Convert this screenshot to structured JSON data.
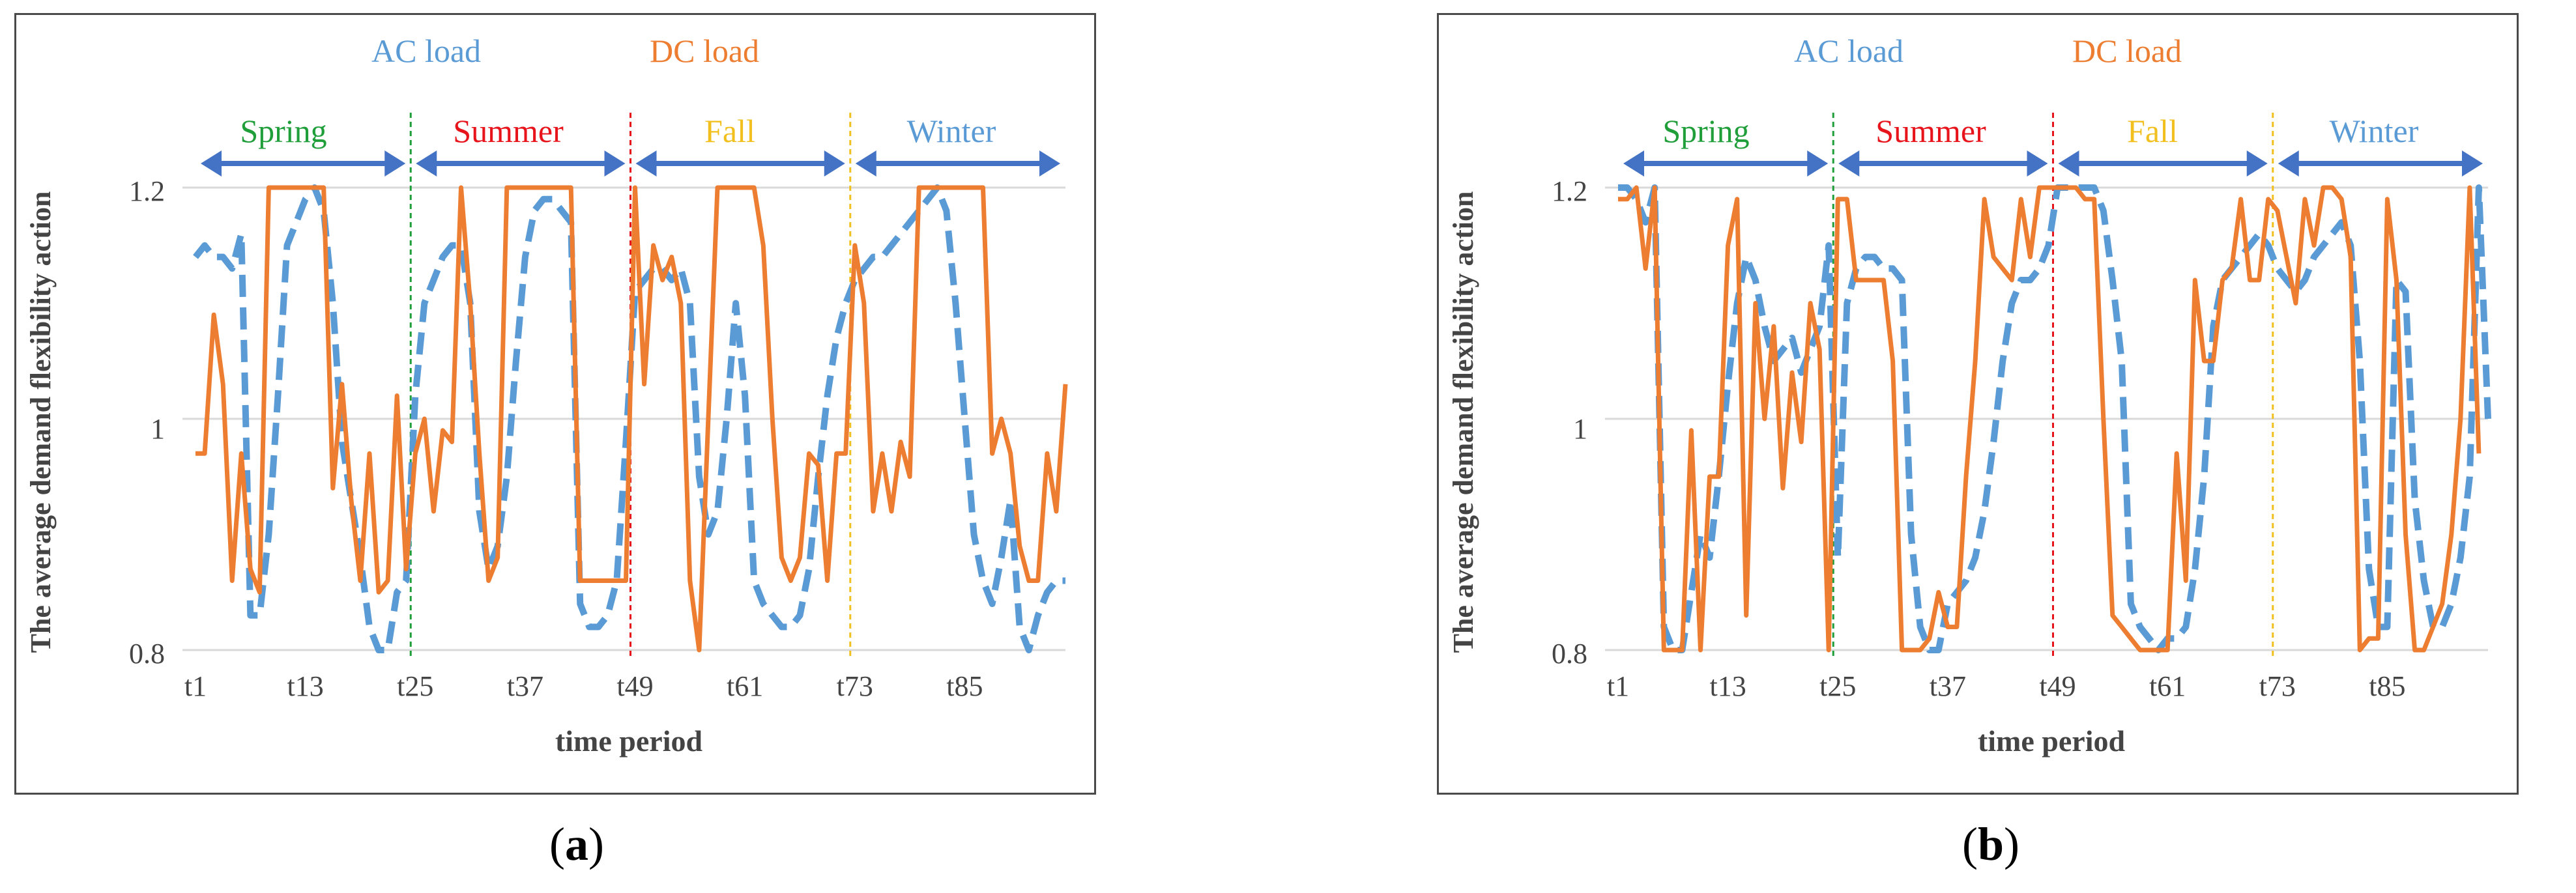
{
  "colors": {
    "ac": "#5b9bd5",
    "dc": "#ed7d31",
    "spring": "#1f9e3a",
    "summer": "#e8141c",
    "fall": "#f2c01e",
    "winter": "#5b9bd5",
    "arrow": "#4472c4",
    "grid": "#d9d9d9"
  },
  "panels": [
    {
      "id": "a",
      "label_open": "(",
      "label_letter": "a",
      "label_close": ")",
      "legend_ac": "AC load",
      "legend_dc": "DC load",
      "seasons": [
        "Spring",
        "Summer",
        "Fall",
        "Winter"
      ],
      "ylabel": "The average demand flexibility action",
      "xlabel": "time period",
      "yticks": [
        "0.8",
        "1",
        "1.2"
      ],
      "xticks": [
        "t1",
        "t13",
        "t25",
        "t37",
        "t49",
        "t61",
        "t73",
        "t85"
      ]
    },
    {
      "id": "b",
      "label_open": "(",
      "label_letter": "b",
      "label_close": ")",
      "legend_ac": "AC load",
      "legend_dc": "DC load",
      "seasons": [
        "Spring",
        "Summer",
        "Fall",
        "Winter"
      ],
      "ylabel": "The average demand flexibility action",
      "xlabel": "time period",
      "yticks": [
        "0.8",
        "1",
        "1.2"
      ],
      "xticks": [
        "t1",
        "t13",
        "t25",
        "t37",
        "t49",
        "t61",
        "t73",
        "t85"
      ]
    }
  ],
  "chart_data": [
    {
      "type": "line",
      "title": "",
      "xlabel": "time period",
      "ylabel": "The average demand flexibility action",
      "ylim": [
        0.8,
        1.2
      ],
      "xlim": [
        1,
        96
      ],
      "x_ticks": [
        "t1",
        "t13",
        "t25",
        "t37",
        "t49",
        "t61",
        "t73",
        "t85"
      ],
      "season_dividers": [
        24.5,
        48.5,
        72.5
      ],
      "series": [
        {
          "name": "AC load",
          "style": "dashed",
          "values": [
            1.14,
            1.15,
            1.14,
            1.14,
            1.13,
            1.16,
            0.83,
            0.83,
            0.9,
            1.02,
            1.15,
            1.17,
            1.19,
            1.2,
            1.18,
            1.1,
            0.98,
            0.93,
            0.88,
            0.82,
            0.8,
            0.8,
            0.85,
            0.86,
            1.02,
            1.1,
            1.12,
            1.14,
            1.15,
            1.15,
            1.1,
            0.92,
            0.87,
            0.89,
            0.95,
            1.05,
            1.14,
            1.18,
            1.19,
            1.19,
            1.18,
            1.17,
            0.84,
            0.82,
            0.82,
            0.83,
            0.86,
            0.98,
            1.11,
            1.12,
            1.13,
            1.13,
            1.12,
            1.13,
            1.1,
            0.95,
            0.9,
            0.92,
            1.0,
            1.1,
            1.02,
            0.86,
            0.84,
            0.83,
            0.82,
            0.82,
            0.83,
            0.87,
            0.95,
            1.02,
            1.07,
            1.1,
            1.12,
            1.13,
            1.14,
            1.14,
            1.15,
            1.16,
            1.17,
            1.18,
            1.19,
            1.2,
            1.18,
            1.1,
            1.0,
            0.9,
            0.86,
            0.84,
            0.88,
            0.93,
            0.82,
            0.8,
            0.83,
            0.85,
            0.86,
            0.86
          ]
        },
        {
          "name": "DC load",
          "style": "solid",
          "values": [
            0.97,
            0.97,
            1.09,
            1.03,
            0.86,
            0.97,
            0.87,
            0.85,
            1.2,
            1.2,
            1.2,
            1.2,
            1.2,
            1.2,
            1.2,
            0.94,
            1.03,
            0.93,
            0.86,
            0.97,
            0.85,
            0.86,
            1.02,
            0.87,
            0.97,
            1.0,
            0.92,
            0.99,
            0.98,
            1.2,
            1.1,
            0.97,
            0.86,
            0.88,
            1.2,
            1.2,
            1.2,
            1.2,
            1.2,
            1.2,
            1.2,
            1.2,
            0.86,
            0.86,
            0.86,
            0.86,
            0.86,
            0.86,
            1.2,
            1.03,
            1.15,
            1.12,
            1.14,
            1.1,
            0.86,
            0.8,
            1.0,
            1.2,
            1.2,
            1.2,
            1.2,
            1.2,
            1.15,
            1.0,
            0.88,
            0.86,
            0.88,
            0.97,
            0.96,
            0.86,
            0.97,
            0.97,
            1.15,
            1.1,
            0.92,
            0.97,
            0.92,
            0.98,
            0.95,
            1.2,
            1.2,
            1.2,
            1.2,
            1.2,
            1.2,
            1.2,
            1.2,
            0.97,
            1.0,
            0.97,
            0.89,
            0.86,
            0.86,
            0.97,
            0.92,
            1.03
          ]
        }
      ]
    },
    {
      "type": "line",
      "title": "",
      "xlabel": "time period",
      "ylabel": "The average demand flexibility action",
      "ylim": [
        0.8,
        1.2
      ],
      "xlim": [
        1,
        96
      ],
      "x_ticks": [
        "t1",
        "t13",
        "t25",
        "t37",
        "t49",
        "t61",
        "t73",
        "t85"
      ],
      "season_dividers": [
        24.5,
        48.5,
        72.5
      ],
      "series": [
        {
          "name": "AC load",
          "style": "dashed",
          "values": [
            1.2,
            1.2,
            1.19,
            1.17,
            1.2,
            0.82,
            0.8,
            0.8,
            0.85,
            0.9,
            0.88,
            0.95,
            1.03,
            1.1,
            1.14,
            1.12,
            1.08,
            1.05,
            1.06,
            1.07,
            1.04,
            1.06,
            1.08,
            1.15,
            0.88,
            1.1,
            1.13,
            1.14,
            1.14,
            1.13,
            1.13,
            1.12,
            0.9,
            0.82,
            0.8,
            0.8,
            0.84,
            0.85,
            0.86,
            0.88,
            0.92,
            0.98,
            1.05,
            1.1,
            1.12,
            1.12,
            1.13,
            1.15,
            1.2,
            1.2,
            1.2,
            1.2,
            1.2,
            1.18,
            1.12,
            1.05,
            0.84,
            0.82,
            0.81,
            0.8,
            0.81,
            0.81,
            0.82,
            0.87,
            0.95,
            1.08,
            1.12,
            1.13,
            1.14,
            1.15,
            1.16,
            1.15,
            1.13,
            1.12,
            1.11,
            1.12,
            1.14,
            1.15,
            1.16,
            1.17,
            1.15,
            1.05,
            0.87,
            0.82,
            0.82,
            1.12,
            1.11,
            0.93,
            0.86,
            0.82,
            0.82,
            0.84,
            0.88,
            0.95,
            1.2,
            1.0
          ]
        },
        {
          "name": "DC load",
          "style": "solid",
          "values": [
            1.19,
            1.19,
            1.2,
            1.13,
            1.2,
            0.8,
            0.8,
            0.8,
            0.99,
            0.8,
            0.95,
            0.95,
            1.15,
            1.19,
            0.83,
            1.1,
            1.0,
            1.08,
            0.94,
            1.04,
            0.98,
            1.1,
            1.06,
            0.8,
            1.19,
            1.19,
            1.12,
            1.12,
            1.12,
            1.12,
            1.05,
            0.8,
            0.8,
            0.8,
            0.81,
            0.85,
            0.82,
            0.82,
            0.95,
            1.05,
            1.19,
            1.14,
            1.13,
            1.12,
            1.19,
            1.14,
            1.2,
            1.2,
            1.2,
            1.2,
            1.2,
            1.19,
            1.19,
            1.0,
            0.83,
            0.82,
            0.81,
            0.8,
            0.8,
            0.8,
            0.8,
            0.97,
            0.86,
            1.12,
            1.05,
            1.05,
            1.12,
            1.13,
            1.19,
            1.12,
            1.12,
            1.19,
            1.18,
            1.14,
            1.1,
            1.19,
            1.15,
            1.2,
            1.2,
            1.19,
            1.14,
            0.8,
            0.81,
            0.81,
            1.19,
            1.12,
            0.9,
            0.8,
            0.8,
            0.82,
            0.84,
            0.9,
            1.0,
            1.2,
            0.97
          ]
        }
      ]
    }
  ]
}
